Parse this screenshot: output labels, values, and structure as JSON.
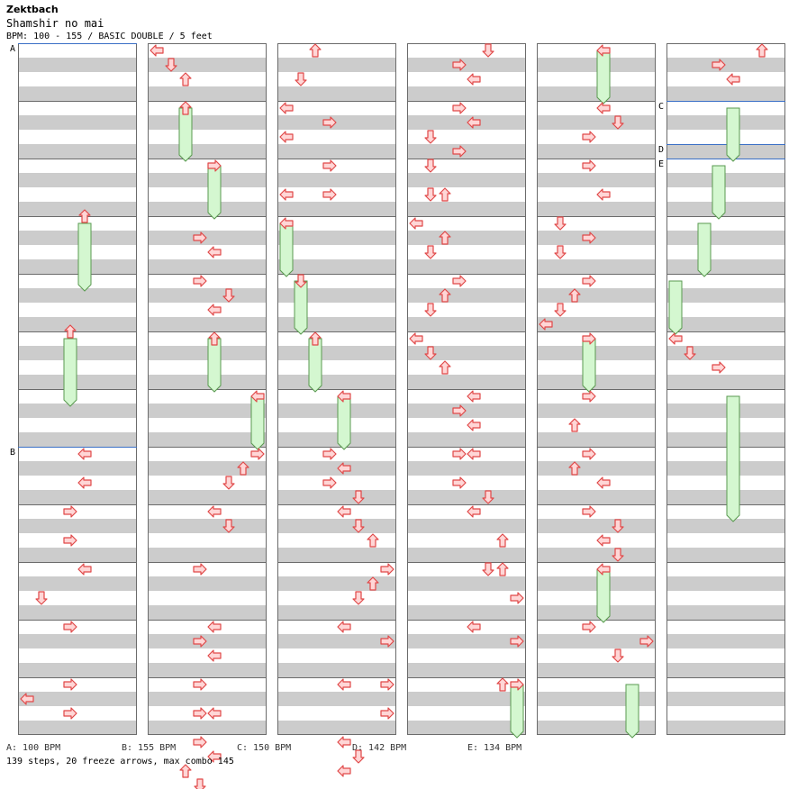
{
  "header": {
    "artist": "Zektbach",
    "title": "Shamshir no mai",
    "info": "BPM: 100 - 155 / BASIC DOUBLE / 5 feet"
  },
  "colors": {
    "band": "#cccccc",
    "border": "#6b6b6b",
    "bpm_line": "#3a6fc6",
    "arrow_fill": "#ffd6d6",
    "arrow_stroke": "#e04848",
    "freeze_fill": "#d4f7d0",
    "freeze_stroke": "#5a9a50"
  },
  "markers": [
    {
      "label": "A",
      "column": 1,
      "measure": 0,
      "beat": 0
    },
    {
      "label": "B",
      "column": 1,
      "measure": 7,
      "beat": 0
    },
    {
      "label": "C",
      "column": 6,
      "measure": 1,
      "beat": 0
    },
    {
      "label": "D",
      "column": 6,
      "measure": 1,
      "beat": 3
    },
    {
      "label": "E",
      "column": 6,
      "measure": 2,
      "beat": 0
    }
  ],
  "bpm_legend": [
    "A: 100 BPM",
    "B: 155 BPM",
    "C: 150 BPM",
    "D: 142 BPM",
    "E: 134 BPM"
  ],
  "stats": "139 steps, 20 freeze arrows, max combo 145",
  "steps": [
    {
      "c": 1,
      "m": 3,
      "b": 0,
      "l": 4,
      "d": "up"
    },
    {
      "c": 1,
      "m": 5,
      "b": 0,
      "l": 3,
      "d": "up"
    },
    {
      "c": 1,
      "m": 7,
      "b": 0.5,
      "l": 4,
      "d": "left"
    },
    {
      "c": 1,
      "m": 7,
      "b": 2.5,
      "l": 4,
      "d": "left"
    },
    {
      "c": 1,
      "m": 8,
      "b": 0.5,
      "l": 3,
      "d": "right"
    },
    {
      "c": 1,
      "m": 8,
      "b": 2.5,
      "l": 3,
      "d": "right"
    },
    {
      "c": 1,
      "m": 9,
      "b": 0.5,
      "l": 4,
      "d": "left"
    },
    {
      "c": 1,
      "m": 9,
      "b": 2.5,
      "l": 1,
      "d": "down"
    },
    {
      "c": 1,
      "m": 10,
      "b": 0.5,
      "l": 3,
      "d": "right"
    },
    {
      "c": 1,
      "m": 11,
      "b": 0.5,
      "l": 3,
      "d": "right"
    },
    {
      "c": 1,
      "m": 11,
      "b": 1.5,
      "l": 0,
      "d": "left"
    },
    {
      "c": 1,
      "m": 11,
      "b": 2.5,
      "l": 3,
      "d": "right"
    },
    {
      "c": 2,
      "m": 0,
      "b": 0.5,
      "l": 0,
      "d": "left"
    },
    {
      "c": 2,
      "m": 0,
      "b": 1.5,
      "l": 1,
      "d": "down"
    },
    {
      "c": 2,
      "m": 0,
      "b": 2.5,
      "l": 2,
      "d": "up"
    },
    {
      "c": 2,
      "m": 1,
      "b": 0.5,
      "l": 2,
      "d": "up"
    },
    {
      "c": 2,
      "m": 2,
      "b": 0.5,
      "l": 4,
      "d": "right"
    },
    {
      "c": 2,
      "m": 3,
      "b": 1.5,
      "l": 3,
      "d": "right"
    },
    {
      "c": 2,
      "m": 3,
      "b": 2.5,
      "l": 4,
      "d": "left"
    },
    {
      "c": 2,
      "m": 4,
      "b": 0.5,
      "l": 3,
      "d": "right"
    },
    {
      "c": 2,
      "m": 4,
      "b": 1.5,
      "l": 5,
      "d": "down"
    },
    {
      "c": 2,
      "m": 4,
      "b": 2.5,
      "l": 4,
      "d": "left"
    },
    {
      "c": 2,
      "m": 5,
      "b": 0.5,
      "l": 4,
      "d": "up"
    },
    {
      "c": 2,
      "m": 6,
      "b": 0.5,
      "l": 7,
      "d": "left"
    },
    {
      "c": 2,
      "m": 7,
      "b": 0.5,
      "l": 7,
      "d": "right"
    },
    {
      "c": 2,
      "m": 7,
      "b": 1.5,
      "l": 6,
      "d": "up"
    },
    {
      "c": 2,
      "m": 7,
      "b": 2.5,
      "l": 5,
      "d": "down"
    },
    {
      "c": 2,
      "m": 8,
      "b": 0.5,
      "l": 4,
      "d": "left"
    },
    {
      "c": 2,
      "m": 8,
      "b": 1.5,
      "l": 5,
      "d": "down"
    },
    {
      "c": 2,
      "m": 9,
      "b": 0.5,
      "l": 3,
      "d": "right"
    },
    {
      "c": 2,
      "m": 10,
      "b": 0.5,
      "l": 4,
      "d": "left"
    },
    {
      "c": 2,
      "m": 10,
      "b": 1.5,
      "l": 3,
      "d": "right"
    },
    {
      "c": 2,
      "m": 10,
      "b": 2.5,
      "l": 4,
      "d": "left"
    },
    {
      "c": 2,
      "m": 11,
      "b": 0.5,
      "l": 3,
      "d": "right"
    },
    {
      "c": 2,
      "m": 11,
      "b": 2.5,
      "l": 3,
      "d": "right"
    },
    {
      "c": 2,
      "m": 11,
      "b": 2.5,
      "l": 4,
      "d": "left"
    },
    {
      "c": 2,
      "m": 12,
      "b": 0.5,
      "l": 3,
      "d": "right"
    },
    {
      "c": 2,
      "m": 12,
      "b": 1.5,
      "l": 4,
      "d": "left"
    },
    {
      "c": 2,
      "m": 12,
      "b": 2.5,
      "l": 2,
      "d": "up"
    },
    {
      "c": 2,
      "m": 12,
      "b": 3.5,
      "l": 3,
      "d": "down"
    },
    {
      "c": 3,
      "m": 0,
      "b": 0.5,
      "l": 2,
      "d": "up"
    },
    {
      "c": 3,
      "m": 0,
      "b": 2.5,
      "l": 1,
      "d": "down"
    },
    {
      "c": 3,
      "m": 1,
      "b": 0.5,
      "l": 0,
      "d": "left"
    },
    {
      "c": 3,
      "m": 1,
      "b": 1.5,
      "l": 3,
      "d": "right"
    },
    {
      "c": 3,
      "m": 1,
      "b": 2.5,
      "l": 0,
      "d": "left"
    },
    {
      "c": 3,
      "m": 2,
      "b": 0.5,
      "l": 3,
      "d": "right"
    },
    {
      "c": 3,
      "m": 2,
      "b": 2.5,
      "l": 0,
      "d": "left"
    },
    {
      "c": 3,
      "m": 2,
      "b": 2.5,
      "l": 3,
      "d": "right"
    },
    {
      "c": 3,
      "m": 3,
      "b": 0.5,
      "l": 0,
      "d": "left"
    },
    {
      "c": 3,
      "m": 4,
      "b": 0.5,
      "l": 1,
      "d": "down"
    },
    {
      "c": 3,
      "m": 5,
      "b": 0.5,
      "l": 2,
      "d": "up"
    },
    {
      "c": 3,
      "m": 6,
      "b": 0.5,
      "l": 4,
      "d": "left"
    },
    {
      "c": 3,
      "m": 7,
      "b": 0.5,
      "l": 3,
      "d": "right"
    },
    {
      "c": 3,
      "m": 7,
      "b": 1.5,
      "l": 4,
      "d": "left"
    },
    {
      "c": 3,
      "m": 7,
      "b": 2.5,
      "l": 3,
      "d": "right"
    },
    {
      "c": 3,
      "m": 7,
      "b": 3.5,
      "l": 5,
      "d": "down"
    },
    {
      "c": 3,
      "m": 8,
      "b": 0.5,
      "l": 4,
      "d": "left"
    },
    {
      "c": 3,
      "m": 8,
      "b": 1.5,
      "l": 5,
      "d": "down"
    },
    {
      "c": 3,
      "m": 8,
      "b": 2.5,
      "l": 6,
      "d": "up"
    },
    {
      "c": 3,
      "m": 9,
      "b": 0.5,
      "l": 7,
      "d": "right"
    },
    {
      "c": 3,
      "m": 9,
      "b": 1.5,
      "l": 6,
      "d": "up"
    },
    {
      "c": 3,
      "m": 9,
      "b": 2.5,
      "l": 5,
      "d": "down"
    },
    {
      "c": 3,
      "m": 10,
      "b": 0.5,
      "l": 4,
      "d": "left"
    },
    {
      "c": 3,
      "m": 10,
      "b": 1.5,
      "l": 7,
      "d": "right"
    },
    {
      "c": 3,
      "m": 11,
      "b": 0.5,
      "l": 4,
      "d": "left"
    },
    {
      "c": 3,
      "m": 11,
      "b": 0.5,
      "l": 7,
      "d": "right"
    },
    {
      "c": 3,
      "m": 11,
      "b": 2.5,
      "l": 7,
      "d": "right"
    },
    {
      "c": 3,
      "m": 12,
      "b": 0.5,
      "l": 4,
      "d": "left"
    },
    {
      "c": 3,
      "m": 12,
      "b": 1.5,
      "l": 5,
      "d": "down"
    },
    {
      "c": 3,
      "m": 12,
      "b": 2.5,
      "l": 4,
      "d": "left"
    },
    {
      "c": 4,
      "m": 0,
      "b": 0.5,
      "l": 5,
      "d": "down"
    },
    {
      "c": 4,
      "m": 0,
      "b": 1.5,
      "l": 3,
      "d": "right"
    },
    {
      "c": 4,
      "m": 0,
      "b": 2.5,
      "l": 4,
      "d": "left"
    },
    {
      "c": 4,
      "m": 1,
      "b": 0.5,
      "l": 3,
      "d": "right"
    },
    {
      "c": 4,
      "m": 1,
      "b": 1.5,
      "l": 4,
      "d": "left"
    },
    {
      "c": 4,
      "m": 1,
      "b": 2.5,
      "l": 1,
      "d": "down"
    },
    {
      "c": 4,
      "m": 1,
      "b": 3.5,
      "l": 3,
      "d": "right"
    },
    {
      "c": 4,
      "m": 2,
      "b": 0.5,
      "l": 1,
      "d": "down"
    },
    {
      "c": 4,
      "m": 2,
      "b": 2.5,
      "l": 1,
      "d": "down"
    },
    {
      "c": 4,
      "m": 2,
      "b": 2.5,
      "l": 2,
      "d": "up"
    },
    {
      "c": 4,
      "m": 3,
      "b": 0.5,
      "l": 0,
      "d": "left"
    },
    {
      "c": 4,
      "m": 3,
      "b": 1.5,
      "l": 2,
      "d": "up"
    },
    {
      "c": 4,
      "m": 3,
      "b": 2.5,
      "l": 1,
      "d": "down"
    },
    {
      "c": 4,
      "m": 4,
      "b": 0.5,
      "l": 3,
      "d": "right"
    },
    {
      "c": 4,
      "m": 4,
      "b": 1.5,
      "l": 2,
      "d": "up"
    },
    {
      "c": 4,
      "m": 4,
      "b": 2.5,
      "l": 1,
      "d": "down"
    },
    {
      "c": 4,
      "m": 5,
      "b": 0.5,
      "l": 0,
      "d": "left"
    },
    {
      "c": 4,
      "m": 5,
      "b": 1.5,
      "l": 1,
      "d": "down"
    },
    {
      "c": 4,
      "m": 5,
      "b": 2.5,
      "l": 2,
      "d": "up"
    },
    {
      "c": 4,
      "m": 6,
      "b": 0.5,
      "l": 4,
      "d": "left"
    },
    {
      "c": 4,
      "m": 6,
      "b": 1.5,
      "l": 3,
      "d": "right"
    },
    {
      "c": 4,
      "m": 6,
      "b": 2.5,
      "l": 4,
      "d": "left"
    },
    {
      "c": 4,
      "m": 7,
      "b": 0.5,
      "l": 3,
      "d": "right"
    },
    {
      "c": 4,
      "m": 7,
      "b": 0.5,
      "l": 4,
      "d": "left"
    },
    {
      "c": 4,
      "m": 7,
      "b": 2.5,
      "l": 3,
      "d": "right"
    },
    {
      "c": 4,
      "m": 7,
      "b": 3.5,
      "l": 5,
      "d": "down"
    },
    {
      "c": 4,
      "m": 8,
      "b": 0.5,
      "l": 4,
      "d": "left"
    },
    {
      "c": 4,
      "m": 8,
      "b": 2.5,
      "l": 6,
      "d": "up"
    },
    {
      "c": 4,
      "m": 9,
      "b": 0.5,
      "l": 5,
      "d": "down"
    },
    {
      "c": 4,
      "m": 9,
      "b": 0.5,
      "l": 6,
      "d": "up"
    },
    {
      "c": 4,
      "m": 9,
      "b": 2.5,
      "l": 7,
      "d": "right"
    },
    {
      "c": 4,
      "m": 10,
      "b": 0.5,
      "l": 4,
      "d": "left"
    },
    {
      "c": 4,
      "m": 10,
      "b": 1.5,
      "l": 7,
      "d": "right"
    },
    {
      "c": 4,
      "m": 11,
      "b": 0.5,
      "l": 6,
      "d": "up"
    },
    {
      "c": 4,
      "m": 11,
      "b": 0.5,
      "l": 7,
      "d": "right"
    },
    {
      "c": 5,
      "m": 0,
      "b": 0.5,
      "l": 4,
      "d": "left"
    },
    {
      "c": 5,
      "m": 1,
      "b": 0.5,
      "l": 4,
      "d": "left"
    },
    {
      "c": 5,
      "m": 1,
      "b": 1.5,
      "l": 5,
      "d": "down"
    },
    {
      "c": 5,
      "m": 1,
      "b": 2.5,
      "l": 3,
      "d": "right"
    },
    {
      "c": 5,
      "m": 2,
      "b": 0.5,
      "l": 3,
      "d": "right"
    },
    {
      "c": 5,
      "m": 2,
      "b": 2.5,
      "l": 4,
      "d": "left"
    },
    {
      "c": 5,
      "m": 3,
      "b": 0.5,
      "l": 1,
      "d": "down"
    },
    {
      "c": 5,
      "m": 3,
      "b": 1.5,
      "l": 3,
      "d": "right"
    },
    {
      "c": 5,
      "m": 3,
      "b": 2.5,
      "l": 1,
      "d": "down"
    },
    {
      "c": 5,
      "m": 4,
      "b": 0.5,
      "l": 3,
      "d": "right"
    },
    {
      "c": 5,
      "m": 4,
      "b": 1.5,
      "l": 2,
      "d": "up"
    },
    {
      "c": 5,
      "m": 4,
      "b": 2.5,
      "l": 1,
      "d": "down"
    },
    {
      "c": 5,
      "m": 4,
      "b": 3.5,
      "l": 0,
      "d": "left"
    },
    {
      "c": 5,
      "m": 5,
      "b": 0.5,
      "l": 3,
      "d": "right"
    },
    {
      "c": 5,
      "m": 6,
      "b": 0.5,
      "l": 3,
      "d": "right"
    },
    {
      "c": 5,
      "m": 6,
      "b": 2.5,
      "l": 2,
      "d": "up"
    },
    {
      "c": 5,
      "m": 7,
      "b": 0.5,
      "l": 3,
      "d": "right"
    },
    {
      "c": 5,
      "m": 7,
      "b": 1.5,
      "l": 2,
      "d": "up"
    },
    {
      "c": 5,
      "m": 7,
      "b": 2.5,
      "l": 4,
      "d": "left"
    },
    {
      "c": 5,
      "m": 8,
      "b": 0.5,
      "l": 3,
      "d": "right"
    },
    {
      "c": 5,
      "m": 8,
      "b": 1.5,
      "l": 5,
      "d": "down"
    },
    {
      "c": 5,
      "m": 8,
      "b": 2.5,
      "l": 4,
      "d": "left"
    },
    {
      "c": 5,
      "m": 8,
      "b": 3.5,
      "l": 5,
      "d": "down"
    },
    {
      "c": 5,
      "m": 9,
      "b": 0.5,
      "l": 4,
      "d": "left"
    },
    {
      "c": 5,
      "m": 10,
      "b": 0.5,
      "l": 3,
      "d": "right"
    },
    {
      "c": 5,
      "m": 10,
      "b": 1.5,
      "l": 7,
      "d": "right"
    },
    {
      "c": 5,
      "m": 10,
      "b": 2.5,
      "l": 5,
      "d": "down"
    },
    {
      "c": 6,
      "m": 0,
      "b": 0.5,
      "l": 6,
      "d": "up"
    },
    {
      "c": 6,
      "m": 0,
      "b": 1.5,
      "l": 3,
      "d": "right"
    },
    {
      "c": 6,
      "m": 0,
      "b": 2.5,
      "l": 4,
      "d": "left"
    },
    {
      "c": 6,
      "m": 5,
      "b": 0.5,
      "l": 0,
      "d": "left"
    },
    {
      "c": 6,
      "m": 5,
      "b": 1.5,
      "l": 1,
      "d": "down"
    },
    {
      "c": 6,
      "m": 5,
      "b": 2.5,
      "l": 3,
      "d": "right"
    }
  ],
  "freezes": [
    {
      "c": 1,
      "m": 3,
      "b": 0,
      "len": 4.5,
      "l": 4
    },
    {
      "c": 1,
      "m": 5,
      "b": 0,
      "len": 4.5,
      "l": 3
    },
    {
      "c": 2,
      "m": 1,
      "b": 0,
      "len": 3.5,
      "l": 2
    },
    {
      "c": 2,
      "m": 2,
      "b": 0,
      "len": 3.5,
      "l": 4
    },
    {
      "c": 2,
      "m": 5,
      "b": 0,
      "len": 3.5,
      "l": 4
    },
    {
      "c": 2,
      "m": 6,
      "b": 0,
      "len": 3.5,
      "l": 7
    },
    {
      "c": 3,
      "m": 3,
      "b": 0,
      "len": 3.5,
      "l": 0
    },
    {
      "c": 3,
      "m": 4,
      "b": 0,
      "len": 3.5,
      "l": 1
    },
    {
      "c": 3,
      "m": 5,
      "b": 0,
      "len": 3.5,
      "l": 2
    },
    {
      "c": 3,
      "m": 6,
      "b": 0,
      "len": 3.5,
      "l": 4
    },
    {
      "c": 4,
      "m": 11,
      "b": 0,
      "len": 3.5,
      "l": 7
    },
    {
      "c": 5,
      "m": 0,
      "b": 0,
      "len": 3.5,
      "l": 4
    },
    {
      "c": 5,
      "m": 5,
      "b": 0,
      "len": 3.5,
      "l": 3
    },
    {
      "c": 5,
      "m": 9,
      "b": 0,
      "len": 3.5,
      "l": 4
    },
    {
      "c": 5,
      "m": 11,
      "b": 0,
      "len": 3.5,
      "l": 6
    },
    {
      "c": 6,
      "m": 1,
      "b": 0,
      "len": 3.5,
      "l": 4
    },
    {
      "c": 6,
      "m": 2,
      "b": 0,
      "len": 3.5,
      "l": 3
    },
    {
      "c": 6,
      "m": 3,
      "b": 0,
      "len": 3.5,
      "l": 2
    },
    {
      "c": 6,
      "m": 4,
      "b": 0,
      "len": 3.5,
      "l": 0
    },
    {
      "c": 6,
      "m": 6,
      "b": 0,
      "len": 8.5,
      "l": 4
    }
  ]
}
